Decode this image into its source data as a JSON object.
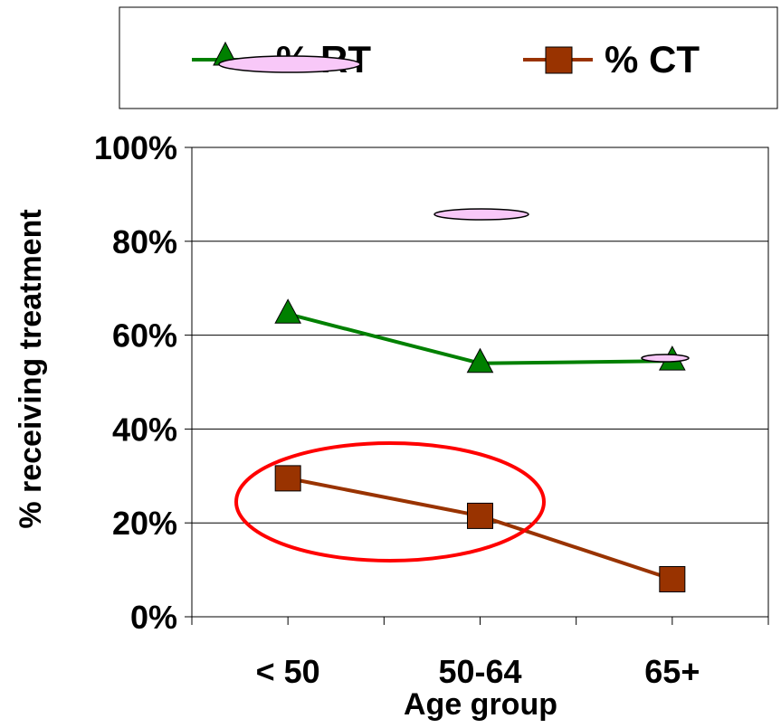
{
  "chart_data": {
    "type": "line",
    "categories": [
      "< 50",
      "50-64",
      "65+"
    ],
    "series": [
      {
        "name": "% RT",
        "values": [
          64.5,
          54.0,
          54.5
        ],
        "color": "#008000",
        "marker": "triangle"
      },
      {
        "name": "% CT",
        "values": [
          29.5,
          21.5,
          8.0
        ],
        "color": "#993300",
        "marker": "square"
      }
    ],
    "xlabel": "Age group",
    "ylabel": "% receiving treatment",
    "ylim": [
      0,
      100
    ],
    "yticks": [
      "0%",
      "20%",
      "40%",
      "60%",
      "80%",
      "100%"
    ],
    "grid": true,
    "legend_position": "top",
    "annotations": {
      "highlight_color": "#ff0000",
      "highlight_note": "circle around % CT for < 50 and 50-64",
      "artifact_fill": "#f8c8f8"
    }
  }
}
